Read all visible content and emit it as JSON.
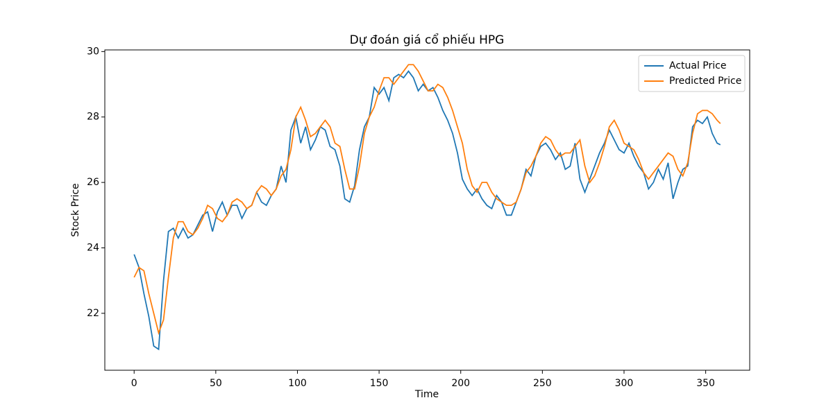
{
  "chart_data": {
    "type": "line",
    "title": "Dự đoán giá cổ phiếu HPG",
    "xlabel": "Time",
    "ylabel": "Stock Price",
    "x": [
      0,
      3,
      6,
      9,
      12,
      15,
      18,
      21,
      24,
      27,
      30,
      33,
      36,
      39,
      42,
      45,
      48,
      51,
      54,
      57,
      60,
      63,
      66,
      69,
      72,
      75,
      78,
      81,
      84,
      87,
      90,
      93,
      96,
      99,
      102,
      105,
      108,
      111,
      114,
      117,
      120,
      123,
      126,
      129,
      132,
      135,
      138,
      141,
      144,
      147,
      150,
      153,
      156,
      159,
      162,
      165,
      168,
      171,
      174,
      177,
      180,
      183,
      186,
      189,
      192,
      195,
      198,
      201,
      204,
      207,
      210,
      213,
      216,
      219,
      222,
      225,
      228,
      231,
      234,
      237,
      240,
      243,
      246,
      249,
      252,
      255,
      258,
      261,
      264,
      267,
      270,
      273,
      276,
      279,
      282,
      285,
      288,
      291,
      294,
      297,
      300,
      303,
      306,
      309,
      312,
      315,
      318,
      321,
      324,
      327,
      330,
      333,
      336,
      339,
      342,
      345,
      348,
      351,
      354,
      357,
      359
    ],
    "series": [
      {
        "name": "Actual Price",
        "color": "#1f77b4",
        "values": [
          23.8,
          23.4,
          22.6,
          21.9,
          21.0,
          20.9,
          23.0,
          24.5,
          24.6,
          24.3,
          24.6,
          24.3,
          24.4,
          24.7,
          25.0,
          25.1,
          24.5,
          25.1,
          25.4,
          25.0,
          25.3,
          25.3,
          24.9,
          25.2,
          25.3,
          25.7,
          25.4,
          25.3,
          25.6,
          25.8,
          26.5,
          26.0,
          27.6,
          28.0,
          27.2,
          27.7,
          27.0,
          27.3,
          27.7,
          27.6,
          27.1,
          27.0,
          26.5,
          25.5,
          25.4,
          25.9,
          27.0,
          27.7,
          28.0,
          28.9,
          28.7,
          28.9,
          28.5,
          29.2,
          29.3,
          29.2,
          29.4,
          29.2,
          28.8,
          29.0,
          28.8,
          28.9,
          28.6,
          28.2,
          27.9,
          27.5,
          26.9,
          26.1,
          25.8,
          25.6,
          25.8,
          25.5,
          25.3,
          25.2,
          25.6,
          25.4,
          25.0,
          25.0,
          25.4,
          25.8,
          26.4,
          26.2,
          26.8,
          27.1,
          27.2,
          27.0,
          26.7,
          26.9,
          26.4,
          26.5,
          27.2,
          26.1,
          25.7,
          26.1,
          26.5,
          26.9,
          27.2,
          27.6,
          27.3,
          27.0,
          26.9,
          27.2,
          26.8,
          26.5,
          26.3,
          25.8,
          26.0,
          26.4,
          26.1,
          26.6,
          25.5,
          26.0,
          26.4,
          26.5,
          27.7,
          27.9,
          27.8,
          28.0,
          27.5,
          27.2,
          27.15
        ]
      },
      {
        "name": "Predicted Price",
        "color": "#ff7f0e",
        "values": [
          23.1,
          23.4,
          23.3,
          22.6,
          22.0,
          21.4,
          21.8,
          23.1,
          24.3,
          24.8,
          24.8,
          24.5,
          24.4,
          24.6,
          24.9,
          25.3,
          25.2,
          24.9,
          24.8,
          25.0,
          25.4,
          25.5,
          25.4,
          25.2,
          25.3,
          25.7,
          25.9,
          25.8,
          25.6,
          25.8,
          26.2,
          26.4,
          27.0,
          28.0,
          28.3,
          27.9,
          27.4,
          27.5,
          27.7,
          27.9,
          27.7,
          27.2,
          27.1,
          26.4,
          25.8,
          25.8,
          26.5,
          27.5,
          28.0,
          28.3,
          28.8,
          29.2,
          29.2,
          29.0,
          29.2,
          29.4,
          29.6,
          29.6,
          29.4,
          29.1,
          28.8,
          28.8,
          29.0,
          28.9,
          28.6,
          28.2,
          27.7,
          27.2,
          26.4,
          25.9,
          25.7,
          26.0,
          26.0,
          25.7,
          25.5,
          25.4,
          25.3,
          25.3,
          25.4,
          25.8,
          26.3,
          26.5,
          26.8,
          27.2,
          27.4,
          27.3,
          27.0,
          26.8,
          26.9,
          26.9,
          27.1,
          27.3,
          26.5,
          26.0,
          26.2,
          26.6,
          27.1,
          27.7,
          27.9,
          27.6,
          27.2,
          27.1,
          27.0,
          26.7,
          26.3,
          26.1,
          26.3,
          26.5,
          26.7,
          26.9,
          26.8,
          26.4,
          26.2,
          26.6,
          27.5,
          28.1,
          28.2,
          28.2,
          28.1,
          27.9,
          27.8
        ]
      }
    ],
    "xlim": [
      -17.95,
      376.95
    ],
    "ylim": [
      20.26,
      30.05
    ],
    "xticks": [
      0,
      50,
      100,
      150,
      200,
      250,
      300,
      350
    ],
    "yticks": [
      22,
      24,
      26,
      28,
      30
    ],
    "grid": false,
    "legend": "upper right"
  }
}
